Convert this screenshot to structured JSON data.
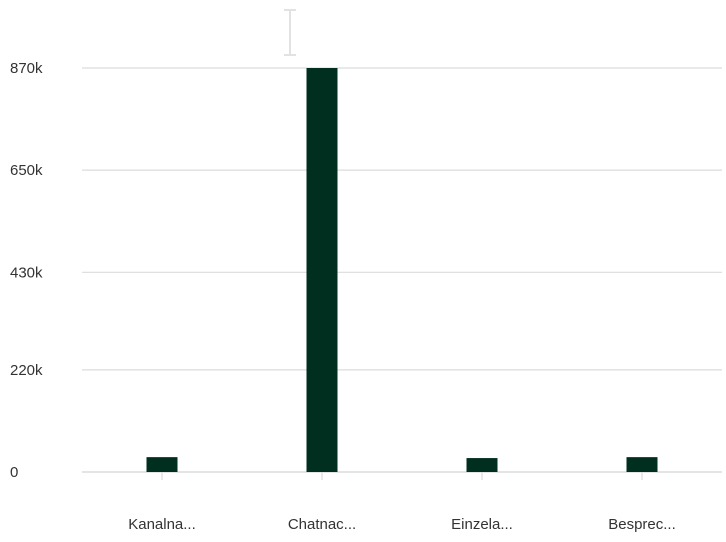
{
  "chart_data": {
    "type": "bar",
    "title": "",
    "xlabel": "",
    "ylabel": "",
    "categories": [
      "Kanalna...",
      "Chatnac...",
      "Einzela...",
      "Besprec..."
    ],
    "values": [
      32000,
      880000,
      30000,
      32000
    ],
    "ylim": [
      0,
      880000
    ],
    "yticks": [
      0,
      220000,
      430000,
      650000,
      870000
    ],
    "ytick_labels": [
      "0",
      "220k",
      "430k",
      "650k",
      "870k"
    ],
    "grid": true,
    "legend": "none",
    "bar_color": "#002f20",
    "gridline_color": "#dcdcdc"
  }
}
